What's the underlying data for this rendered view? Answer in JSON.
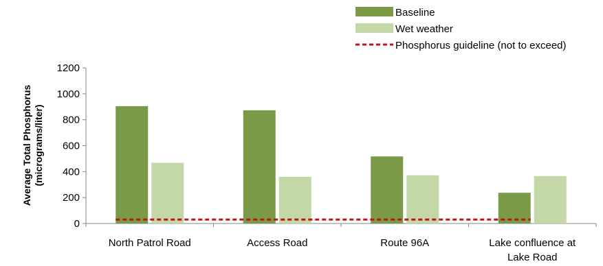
{
  "chart_data": {
    "type": "bar",
    "title": "",
    "xlabel": "",
    "ylabel": [
      "Average Total Phosphorus",
      "(micrograms/liter)"
    ],
    "ylim": [
      0,
      1200
    ],
    "yticks": [
      0,
      200,
      400,
      600,
      800,
      1000,
      1200
    ],
    "grid": false,
    "legend_position": "top-right",
    "categories": [
      [
        "North Patrol Road"
      ],
      [
        "Access Road"
      ],
      [
        "Route 96A"
      ],
      [
        "Lake confluence at",
        "Lake Road"
      ]
    ],
    "series": [
      {
        "name": "Baseline",
        "color": "#7A9A48",
        "values": [
          905,
          873,
          517,
          237
        ]
      },
      {
        "name": "Wet weather",
        "color": "#C4D7A7",
        "values": [
          468,
          360,
          372,
          366
        ]
      }
    ],
    "reference_line": {
      "name": "Phosphorus guideline (not to exceed)",
      "value": 20,
      "color": "#C0141C",
      "style": "dashed"
    }
  }
}
